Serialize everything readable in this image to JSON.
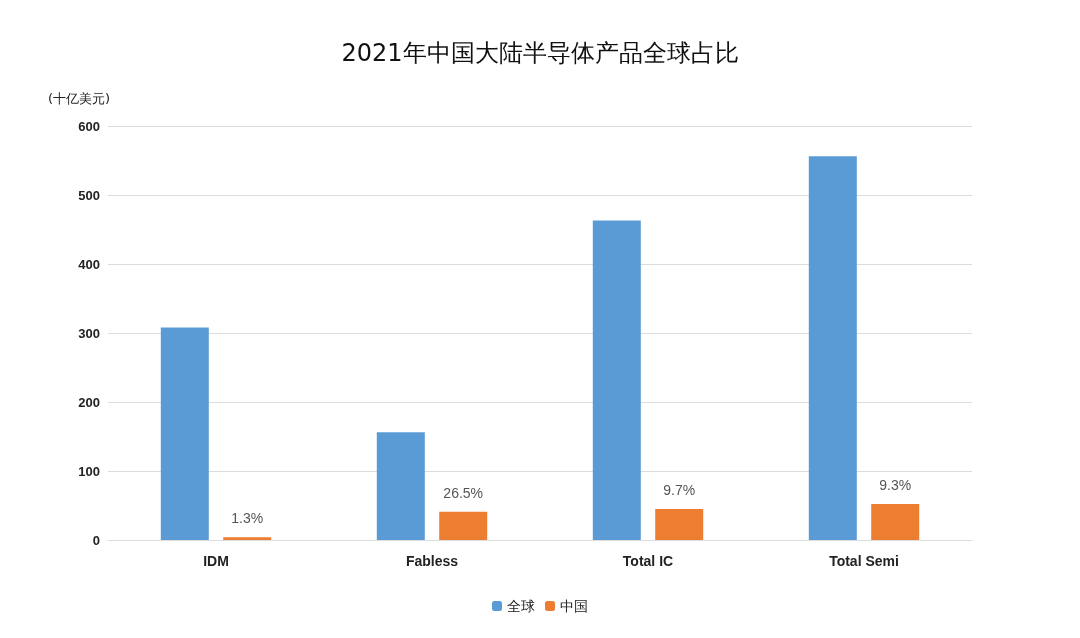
{
  "chart_data": {
    "type": "bar",
    "title": "2021年中国大陆半导体产品全球占比",
    "ylabel": "(十亿美元)",
    "categories": [
      "IDM",
      "Fabless",
      "Total IC",
      "Total Semi"
    ],
    "series": [
      {
        "name": "全球",
        "color": "#5b9bd5",
        "values": [
          308,
          156,
          463,
          556
        ]
      },
      {
        "name": "中国",
        "color": "#ed7d31",
        "values": [
          4,
          41,
          45,
          52
        ]
      }
    ],
    "annotations": [
      "1.3%",
      "26.5%",
      "9.7%",
      "9.3%"
    ],
    "ylim": [
      0,
      600
    ],
    "yticks": [
      0,
      100,
      200,
      300,
      400,
      500,
      600
    ],
    "grid": "y",
    "legend": "bottom"
  }
}
